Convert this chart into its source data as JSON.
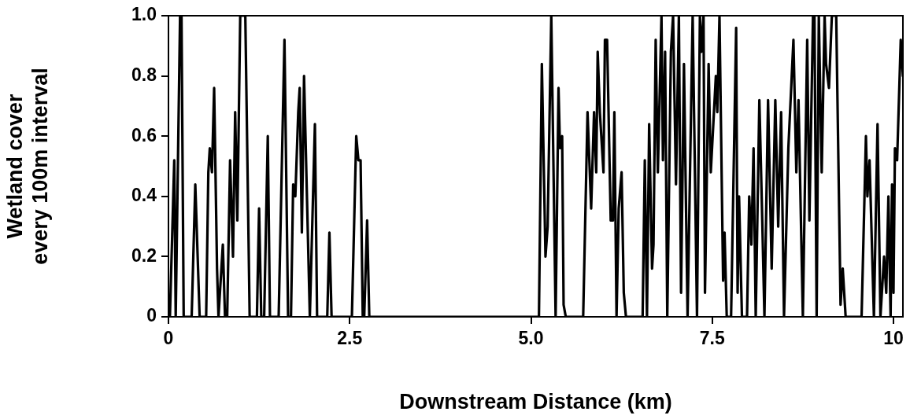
{
  "chart_data": {
    "type": "line",
    "xlabel": "Downstream Distance (km)",
    "ylabel": "Wetland cover\nevery 100m interval",
    "xlim": [
      0,
      10.13
    ],
    "ylim": [
      0,
      1
    ],
    "xticks": [
      0,
      2.5,
      {
        "value": 5,
        "label": "5.0"
      },
      7.5,
      10
    ],
    "yticks": [
      0,
      0.2,
      0.4,
      0.6,
      0.8,
      {
        "value": 1,
        "label": "1.0"
      }
    ],
    "grid": false,
    "legend": false,
    "marker": "none",
    "line_style": "solid",
    "series": [
      {
        "color": "#000000",
        "x": [
          0.02,
          0.08,
          0.1,
          0.16,
          0.18,
          0.21,
          0.32,
          0.37,
          0.43,
          0.52,
          0.55,
          0.57,
          0.6,
          0.63,
          0.67,
          0.69,
          0.75,
          0.78,
          0.81,
          0.85,
          0.89,
          0.92,
          0.95,
          0.99,
          1.06,
          1.12,
          1.22,
          1.25,
          1.28,
          1.32,
          1.37,
          1.4,
          1.52,
          1.6,
          1.65,
          1.69,
          1.72,
          1.75,
          1.79,
          1.81,
          1.84,
          1.87,
          1.95,
          2.02,
          2.05,
          2.19,
          2.22,
          2.25,
          2.53,
          2.59,
          2.62,
          2.65,
          2.68,
          2.7,
          2.74,
          2.77,
          5.11,
          5.15,
          5.2,
          5.23,
          5.28,
          5.34,
          5.38,
          5.4,
          5.43,
          5.45,
          5.48,
          5.72,
          5.78,
          5.83,
          5.87,
          5.9,
          5.92,
          5.95,
          6.0,
          6.02,
          6.05,
          6.1,
          6.13,
          6.15,
          6.18,
          6.21,
          6.25,
          6.28,
          6.31,
          6.54,
          6.57,
          6.6,
          6.63,
          6.67,
          6.69,
          6.72,
          6.75,
          6.8,
          6.82,
          6.85,
          6.88,
          6.93,
          6.96,
          7.0,
          7.04,
          7.07,
          7.11,
          7.16,
          7.23,
          7.29,
          7.33,
          7.35,
          7.38,
          7.4,
          7.45,
          7.48,
          7.55,
          7.57,
          7.6,
          7.65,
          7.67,
          7.7,
          7.76,
          7.83,
          7.85,
          7.87,
          7.91,
          7.98,
          8.01,
          8.04,
          8.07,
          8.1,
          8.15,
          8.19,
          8.22,
          8.27,
          8.32,
          8.37,
          8.41,
          8.45,
          8.49,
          8.55,
          8.62,
          8.66,
          8.69,
          8.75,
          8.81,
          8.84,
          8.89,
          8.91,
          8.94,
          8.97,
          9.01,
          9.05,
          9.07,
          9.11,
          9.15,
          9.21,
          9.27,
          9.3,
          9.34,
          9.56,
          9.62,
          9.64,
          9.67,
          9.73,
          9.78,
          9.82,
          9.87,
          9.9,
          9.93,
          9.96,
          9.98,
          10.0,
          10.02,
          10.05,
          10.1,
          10.13
        ],
        "values": [
          0,
          0.52,
          0,
          1,
          1,
          0,
          0,
          0.44,
          0,
          0,
          0.48,
          0.56,
          0.48,
          0.76,
          0.16,
          0,
          0.24,
          0,
          0,
          0.52,
          0.2,
          0.68,
          0.32,
          1,
          1,
          0,
          0,
          0.36,
          0,
          0,
          0.6,
          0,
          0,
          0.92,
          0,
          0,
          0.44,
          0.4,
          0.68,
          0.76,
          0.28,
          0.8,
          0,
          0.64,
          0,
          0,
          0.28,
          0,
          0,
          0.6,
          0.52,
          0.52,
          0,
          0,
          0.32,
          0,
          0,
          0.84,
          0.2,
          0.3,
          1,
          0,
          0.76,
          0.56,
          0.6,
          0.04,
          0,
          0,
          0.68,
          0.36,
          0.68,
          0.48,
          0.88,
          0.68,
          0.48,
          0.92,
          0.92,
          0.32,
          0.32,
          0.68,
          0,
          0.36,
          0.48,
          0.08,
          0,
          0,
          0.52,
          0,
          0.64,
          0.16,
          0.24,
          0.92,
          0.48,
          1,
          0.52,
          0.88,
          0,
          0.88,
          1,
          0.44,
          1,
          0.08,
          0.84,
          0,
          1,
          0,
          1,
          0.88,
          1,
          0.08,
          0.84,
          0.48,
          0.8,
          0.68,
          1,
          0.12,
          0.28,
          0,
          0,
          0.96,
          0.08,
          0.4,
          0,
          0,
          0.4,
          0.24,
          0.56,
          0,
          0.72,
          0.32,
          0,
          0.72,
          0.16,
          0.72,
          0.3,
          0.68,
          0,
          0.56,
          0.92,
          0.48,
          0.72,
          0,
          0.92,
          0.32,
          1,
          1,
          0,
          1,
          0.48,
          1,
          0.84,
          0.76,
          1,
          1,
          0.04,
          0.16,
          0,
          0,
          0.6,
          0.4,
          0.52,
          0,
          0.64,
          0,
          0.2,
          0.08,
          0.4,
          0,
          0.44,
          0.08,
          0.56,
          0.52,
          0.92,
          0.8
        ]
      }
    ]
  }
}
